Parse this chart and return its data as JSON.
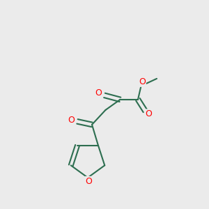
{
  "bg_color": "#ebebeb",
  "bond_color": "#2d6e50",
  "atom_color_O": "#ff0000",
  "bond_width": 1.5,
  "figsize": [
    3.0,
    3.0
  ],
  "dpi": 100,
  "xlim": [
    0,
    10
  ],
  "ylim": [
    0,
    10
  ]
}
